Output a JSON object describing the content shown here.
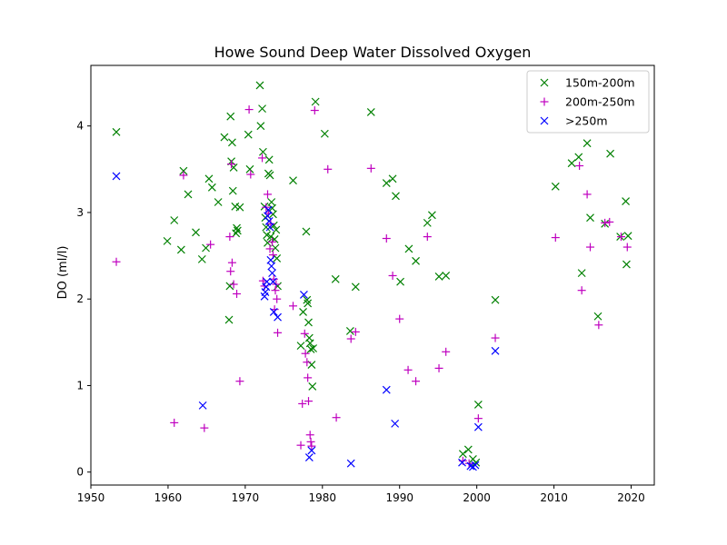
{
  "chart_data": {
    "type": "scatter",
    "title": "Howe Sound Deep Water Dissolved Oxygen",
    "xlabel": "",
    "ylabel": "DO (ml/l)",
    "xlim": [
      1950,
      2023
    ],
    "ylim": [
      -0.15,
      4.7
    ],
    "xticks": [
      1950,
      1960,
      1970,
      1980,
      1990,
      2000,
      2010,
      2020
    ],
    "yticks": [
      0,
      1,
      2,
      3,
      4
    ],
    "grid": false,
    "legend_position": "top-right",
    "series": [
      {
        "name": "150m-200m",
        "marker": "x",
        "color": "#008000",
        "points": [
          [
            1953.3,
            3.93
          ],
          [
            1959.9,
            2.67
          ],
          [
            1960.8,
            2.91
          ],
          [
            1961.7,
            2.57
          ],
          [
            1962.0,
            3.48
          ],
          [
            1962.6,
            3.21
          ],
          [
            1963.6,
            2.77
          ],
          [
            1964.4,
            2.46
          ],
          [
            1964.9,
            2.59
          ],
          [
            1965.3,
            3.39
          ],
          [
            1965.7,
            3.29
          ],
          [
            1966.5,
            3.12
          ],
          [
            1967.3,
            3.87
          ],
          [
            1967.9,
            1.76
          ],
          [
            1968.0,
            2.15
          ],
          [
            1968.1,
            4.11
          ],
          [
            1968.2,
            3.59
          ],
          [
            1968.3,
            3.81
          ],
          [
            1968.4,
            3.25
          ],
          [
            1968.5,
            3.52
          ],
          [
            1968.7,
            3.07
          ],
          [
            1968.8,
            2.76
          ],
          [
            1968.9,
            2.82
          ],
          [
            1969.0,
            2.79
          ],
          [
            1969.3,
            3.06
          ],
          [
            1970.4,
            3.9
          ],
          [
            1970.6,
            3.5
          ],
          [
            1971.9,
            4.47
          ],
          [
            1972.0,
            4.0
          ],
          [
            1972.2,
            4.2
          ],
          [
            1972.3,
            3.7
          ],
          [
            1972.5,
            3.07
          ],
          [
            1972.6,
            2.94
          ],
          [
            1972.7,
            2.83
          ],
          [
            1972.8,
            2.74
          ],
          [
            1972.9,
            2.65
          ],
          [
            1973.0,
            3.45
          ],
          [
            1973.1,
            3.61
          ],
          [
            1973.2,
            3.43
          ],
          [
            1973.3,
            2.72
          ],
          [
            1973.4,
            3.12
          ],
          [
            1973.5,
            3.05
          ],
          [
            1973.6,
            2.98
          ],
          [
            1973.7,
            2.85
          ],
          [
            1973.8,
            2.69
          ],
          [
            1973.9,
            2.59
          ],
          [
            1974.0,
            2.8
          ],
          [
            1974.1,
            2.47
          ],
          [
            1974.2,
            2.15
          ],
          [
            1976.2,
            3.37
          ],
          [
            1977.2,
            1.46
          ],
          [
            1977.5,
            1.85
          ],
          [
            1977.9,
            2.78
          ],
          [
            1978.0,
            1.99
          ],
          [
            1978.1,
            1.95
          ],
          [
            1978.2,
            1.73
          ],
          [
            1978.3,
            1.55
          ],
          [
            1978.4,
            1.49
          ],
          [
            1978.5,
            1.42
          ],
          [
            1978.6,
            1.24
          ],
          [
            1978.7,
            0.99
          ],
          [
            1978.8,
            1.43
          ],
          [
            1979.1,
            4.28
          ],
          [
            1980.3,
            3.91
          ],
          [
            1981.7,
            2.23
          ],
          [
            1983.6,
            1.63
          ],
          [
            1984.3,
            2.14
          ],
          [
            1986.3,
            4.16
          ],
          [
            1988.3,
            3.34
          ],
          [
            1989.1,
            3.39
          ],
          [
            1989.5,
            3.19
          ],
          [
            1990.1,
            2.2
          ],
          [
            1991.2,
            2.58
          ],
          [
            1992.1,
            2.44
          ],
          [
            1993.6,
            2.88
          ],
          [
            1994.2,
            2.97
          ],
          [
            1995.1,
            2.26
          ],
          [
            1996.0,
            2.27
          ],
          [
            1998.2,
            0.21
          ],
          [
            1998.9,
            0.26
          ],
          [
            1999.5,
            0.15
          ],
          [
            1999.9,
            0.11
          ],
          [
            2000.2,
            0.78
          ],
          [
            2002.4,
            1.99
          ],
          [
            2010.2,
            3.3
          ],
          [
            2012.3,
            3.57
          ],
          [
            2013.2,
            3.64
          ],
          [
            2013.6,
            2.3
          ],
          [
            2014.3,
            3.8
          ],
          [
            2014.7,
            2.94
          ],
          [
            2015.7,
            1.8
          ],
          [
            2016.6,
            2.87
          ],
          [
            2017.3,
            3.68
          ],
          [
            2018.6,
            2.72
          ],
          [
            2019.3,
            3.13
          ],
          [
            2019.4,
            2.4
          ],
          [
            2019.6,
            2.73
          ]
        ]
      },
      {
        "name": "200m-250m",
        "marker": "+",
        "color": "#bf00bf",
        "points": [
          [
            1953.3,
            2.43
          ],
          [
            1960.8,
            0.57
          ],
          [
            1962.0,
            3.43
          ],
          [
            1964.7,
            0.51
          ],
          [
            1965.5,
            2.63
          ],
          [
            1968.0,
            2.72
          ],
          [
            1968.1,
            2.32
          ],
          [
            1968.2,
            3.56
          ],
          [
            1968.3,
            2.42
          ],
          [
            1968.5,
            2.17
          ],
          [
            1968.9,
            2.06
          ],
          [
            1969.3,
            1.05
          ],
          [
            1970.5,
            4.19
          ],
          [
            1970.7,
            3.44
          ],
          [
            1972.2,
            3.63
          ],
          [
            1972.3,
            2.21
          ],
          [
            1972.5,
            2.15
          ],
          [
            1972.7,
            3.06
          ],
          [
            1972.9,
            3.21
          ],
          [
            1973.0,
            2.99
          ],
          [
            1973.2,
            2.58
          ],
          [
            1973.3,
            2.87
          ],
          [
            1973.5,
            2.66
          ],
          [
            1973.6,
            2.51
          ],
          [
            1973.7,
            2.23
          ],
          [
            1973.8,
            1.88
          ],
          [
            1973.9,
            2.1
          ],
          [
            1974.0,
            2.17
          ],
          [
            1974.1,
            2.0
          ],
          [
            1974.2,
            1.61
          ],
          [
            1976.2,
            1.92
          ],
          [
            1977.2,
            0.31
          ],
          [
            1977.4,
            0.79
          ],
          [
            1977.7,
            1.6
          ],
          [
            1977.8,
            1.37
          ],
          [
            1978.0,
            1.27
          ],
          [
            1978.1,
            1.09
          ],
          [
            1978.2,
            0.82
          ],
          [
            1978.4,
            0.43
          ],
          [
            1978.5,
            0.35
          ],
          [
            1978.6,
            0.3
          ],
          [
            1979.0,
            4.18
          ],
          [
            1980.7,
            3.5
          ],
          [
            1981.8,
            0.63
          ],
          [
            1983.7,
            1.54
          ],
          [
            1984.3,
            1.62
          ],
          [
            1986.3,
            3.51
          ],
          [
            1988.3,
            2.7
          ],
          [
            1989.1,
            2.27
          ],
          [
            1990.0,
            1.77
          ],
          [
            1991.1,
            1.18
          ],
          [
            1992.1,
            1.05
          ],
          [
            1993.6,
            2.72
          ],
          [
            1995.1,
            1.2
          ],
          [
            1996.0,
            1.39
          ],
          [
            1998.2,
            0.13
          ],
          [
            1999.0,
            0.1
          ],
          [
            2000.2,
            0.62
          ],
          [
            2002.4,
            1.55
          ],
          [
            2010.2,
            2.71
          ],
          [
            2013.3,
            3.54
          ],
          [
            2013.6,
            2.1
          ],
          [
            2014.3,
            3.21
          ],
          [
            2014.7,
            2.6
          ],
          [
            2015.8,
            1.7
          ],
          [
            2016.6,
            2.88
          ],
          [
            2017.2,
            2.89
          ],
          [
            2018.7,
            2.72
          ],
          [
            2019.5,
            2.6
          ]
        ]
      },
      {
        "name": ">250m",
        "marker": "x",
        "color": "#0000ff",
        "points": [
          [
            1953.3,
            3.42
          ],
          [
            1964.5,
            0.77
          ],
          [
            1972.5,
            2.03
          ],
          [
            1972.6,
            2.08
          ],
          [
            1972.7,
            2.14
          ],
          [
            1972.8,
            2.2
          ],
          [
            1972.9,
            2.96
          ],
          [
            1973.0,
            3.03
          ],
          [
            1973.1,
            2.9
          ],
          [
            1973.2,
            2.83
          ],
          [
            1973.3,
            2.45
          ],
          [
            1973.4,
            2.38
          ],
          [
            1973.5,
            2.3
          ],
          [
            1973.6,
            2.2
          ],
          [
            1973.7,
            1.85
          ],
          [
            1974.2,
            1.79
          ],
          [
            1977.6,
            2.05
          ],
          [
            1978.3,
            0.17
          ],
          [
            1978.6,
            0.25
          ],
          [
            1983.7,
            0.1
          ],
          [
            1988.3,
            0.95
          ],
          [
            1989.4,
            0.56
          ],
          [
            1998.1,
            0.11
          ],
          [
            1999.2,
            0.07
          ],
          [
            1999.5,
            0.06
          ],
          [
            1999.8,
            0.08
          ],
          [
            2000.2,
            0.52
          ],
          [
            2002.4,
            1.4
          ]
        ]
      }
    ]
  }
}
